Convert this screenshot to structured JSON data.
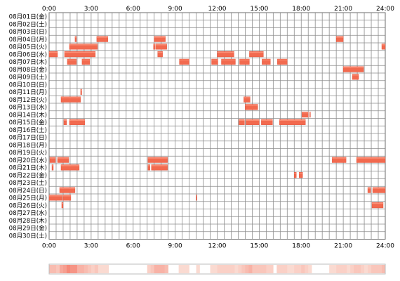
{
  "chart_data": {
    "type": "timeline",
    "x_unit": "hours of day",
    "xlim": [
      0,
      24
    ],
    "x_tick_values": [
      0,
      3,
      6,
      9,
      12,
      15,
      18,
      21,
      24
    ],
    "x_tick_labels": [
      "0:00",
      "3:00",
      "6:00",
      "9:00",
      "12:00",
      "15:00",
      "18:00",
      "21:00",
      "24:00"
    ],
    "grid": true,
    "colors": {
      "bar": "#f26a4f",
      "bar_edge": "#e04e36",
      "bar_highlight": "#ff9e84",
      "grid": "#8c8c8c",
      "strip_low": "#fbe4dc",
      "strip_high": "#f58a7a"
    },
    "days": [
      {
        "label": "08月01日(金)",
        "sessions": []
      },
      {
        "label": "08月02日(土)",
        "sessions": []
      },
      {
        "label": "08月03日(日)",
        "sessions": []
      },
      {
        "label": "08月04日(月)",
        "sessions": [
          [
            1.85,
            1.95
          ],
          [
            3.4,
            4.2
          ],
          [
            7.5,
            8.3
          ],
          [
            20.5,
            21.0
          ]
        ]
      },
      {
        "label": "08月05日(火)",
        "sessions": [
          [
            1.45,
            3.45
          ],
          [
            7.45,
            7.55
          ],
          [
            7.6,
            8.4
          ],
          [
            23.75,
            24.0
          ]
        ]
      },
      {
        "label": "08月06日(水)",
        "sessions": [
          [
            0.0,
            0.6
          ],
          [
            1.1,
            3.3
          ],
          [
            7.75,
            8.1
          ],
          [
            12.0,
            13.2
          ],
          [
            14.3,
            15.3
          ]
        ]
      },
      {
        "label": "08月07日(木)",
        "sessions": [
          [
            1.3,
            1.95
          ],
          [
            2.35,
            2.9
          ],
          [
            9.3,
            10.0
          ],
          [
            11.6,
            12.05
          ],
          [
            12.3,
            13.3
          ],
          [
            13.6,
            14.3
          ],
          [
            15.2,
            15.8
          ],
          [
            16.3,
            17.0
          ]
        ]
      },
      {
        "label": "08月08日(金)",
        "sessions": [
          [
            21.0,
            22.45
          ]
        ]
      },
      {
        "label": "08月09日(土)",
        "sessions": [
          [
            21.65,
            22.1
          ]
        ]
      },
      {
        "label": "08月10日(日)",
        "sessions": []
      },
      {
        "label": "08月11日(月)",
        "sessions": [
          [
            2.25,
            2.33
          ]
        ]
      },
      {
        "label": "08月12日(火)",
        "sessions": [
          [
            0.85,
            2.25
          ],
          [
            13.9,
            14.35
          ]
        ]
      },
      {
        "label": "08月13日(水)",
        "sessions": [
          [
            14.0,
            14.9
          ]
        ]
      },
      {
        "label": "08月14日(木)",
        "sessions": [
          [
            18.05,
            18.5
          ],
          [
            18.6,
            18.65
          ]
        ]
      },
      {
        "label": "08月15日(金)",
        "sessions": [
          [
            1.05,
            1.25
          ],
          [
            1.45,
            2.55
          ],
          [
            13.55,
            13.95
          ],
          [
            14.05,
            15.0
          ],
          [
            15.15,
            15.95
          ],
          [
            16.45,
            18.3
          ]
        ]
      },
      {
        "label": "08月16日(土)",
        "sessions": []
      },
      {
        "label": "08月17日(日)",
        "sessions": []
      },
      {
        "label": "08月18日(月)",
        "sessions": []
      },
      {
        "label": "08月19日(火)",
        "sessions": []
      },
      {
        "label": "08月20日(水)",
        "sessions": [
          [
            0.05,
            0.45
          ],
          [
            0.6,
            1.4
          ],
          [
            7.05,
            8.45
          ],
          [
            20.2,
            21.2
          ],
          [
            21.95,
            24.0
          ]
        ]
      },
      {
        "label": "08月21日(木)",
        "sessions": [
          [
            0.2,
            0.3
          ],
          [
            0.85,
            2.15
          ],
          [
            7.05,
            7.2
          ],
          [
            7.3,
            8.45
          ]
        ]
      },
      {
        "label": "08月22日(金)",
        "sessions": [
          [
            17.5,
            17.65
          ],
          [
            17.85,
            18.1
          ]
        ]
      },
      {
        "label": "08月23日(土)",
        "sessions": []
      },
      {
        "label": "08月24日(日)",
        "sessions": [
          [
            0.75,
            1.85
          ],
          [
            22.75,
            22.95
          ],
          [
            23.1,
            24.0
          ]
        ]
      },
      {
        "label": "08月25日(月)",
        "sessions": [
          [
            0.0,
            0.95
          ],
          [
            1.0,
            1.55
          ],
          [
            10.5,
            10.55
          ]
        ]
      },
      {
        "label": "08月26日(火)",
        "sessions": [
          [
            0.9,
            1.0
          ],
          [
            23.05,
            23.85
          ]
        ]
      },
      {
        "label": "08月27日(水)",
        "sessions": []
      },
      {
        "label": "08月28日(木)",
        "sessions": []
      },
      {
        "label": "08月29日(金)",
        "sessions": []
      },
      {
        "label": "08月30日(土)",
        "sessions": []
      }
    ]
  }
}
